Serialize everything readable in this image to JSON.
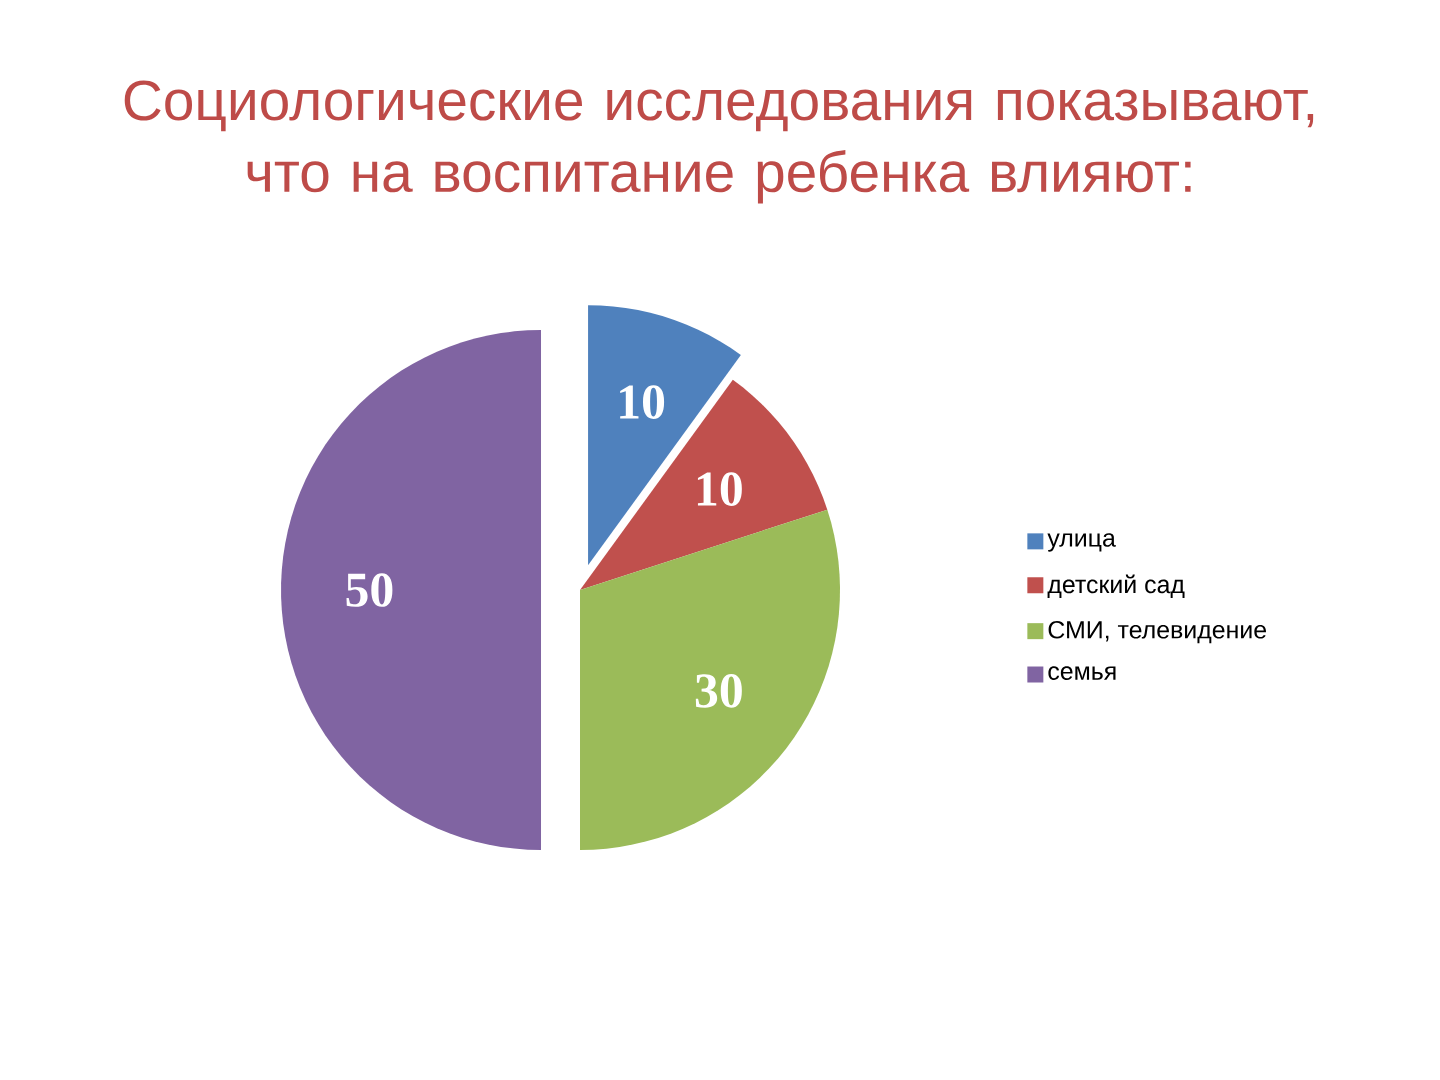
{
  "chart_data": {
    "type": "pie",
    "title": "Социологические исследования показывают, что на воспитание ребенка влияют:",
    "categories": [
      "улица",
      "детский сад",
      "СМИ, телевидение",
      "семья"
    ],
    "values": [
      10,
      10,
      30,
      50
    ],
    "colors": [
      "#4f81bd",
      "#c0504d",
      "#9bbb59",
      "#8064a2"
    ],
    "data_labels": true,
    "legend": "right"
  }
}
